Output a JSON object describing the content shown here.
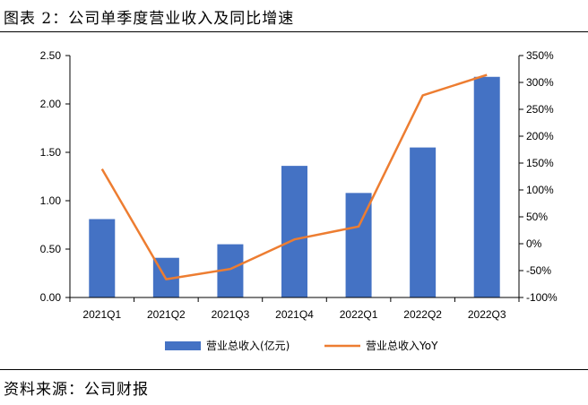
{
  "figure": {
    "title": "图表 2：公司单季度营业收入及同比增速",
    "source": "资料来源：公司财报"
  },
  "chart_data": {
    "type": "bar+line",
    "categories": [
      "2021Q1",
      "2021Q2",
      "2021Q3",
      "2021Q4",
      "2022Q1",
      "2022Q2",
      "2022Q3"
    ],
    "series": [
      {
        "name": "营业总收入(亿元)",
        "type": "bar",
        "axis": "left",
        "color": "#4472C4",
        "values": [
          0.81,
          0.41,
          0.55,
          1.36,
          1.08,
          1.55,
          2.28
        ]
      },
      {
        "name": "营业总收入YoY",
        "type": "line",
        "axis": "right",
        "color": "#ED7D31",
        "values": [
          139,
          -66,
          -47,
          8,
          32,
          276,
          314
        ]
      }
    ],
    "left_axis": {
      "min": 0,
      "max": 2.5,
      "ticks": [
        "0.00",
        "0.50",
        "1.00",
        "1.50",
        "2.00",
        "2.50"
      ]
    },
    "right_axis": {
      "min": -100,
      "max": 350,
      "ticks": [
        "-100%",
        "-50%",
        "0%",
        "50%",
        "100%",
        "150%",
        "200%",
        "250%",
        "300%",
        "350%"
      ]
    },
    "legend": {
      "position": "bottom"
    },
    "grid": false
  }
}
